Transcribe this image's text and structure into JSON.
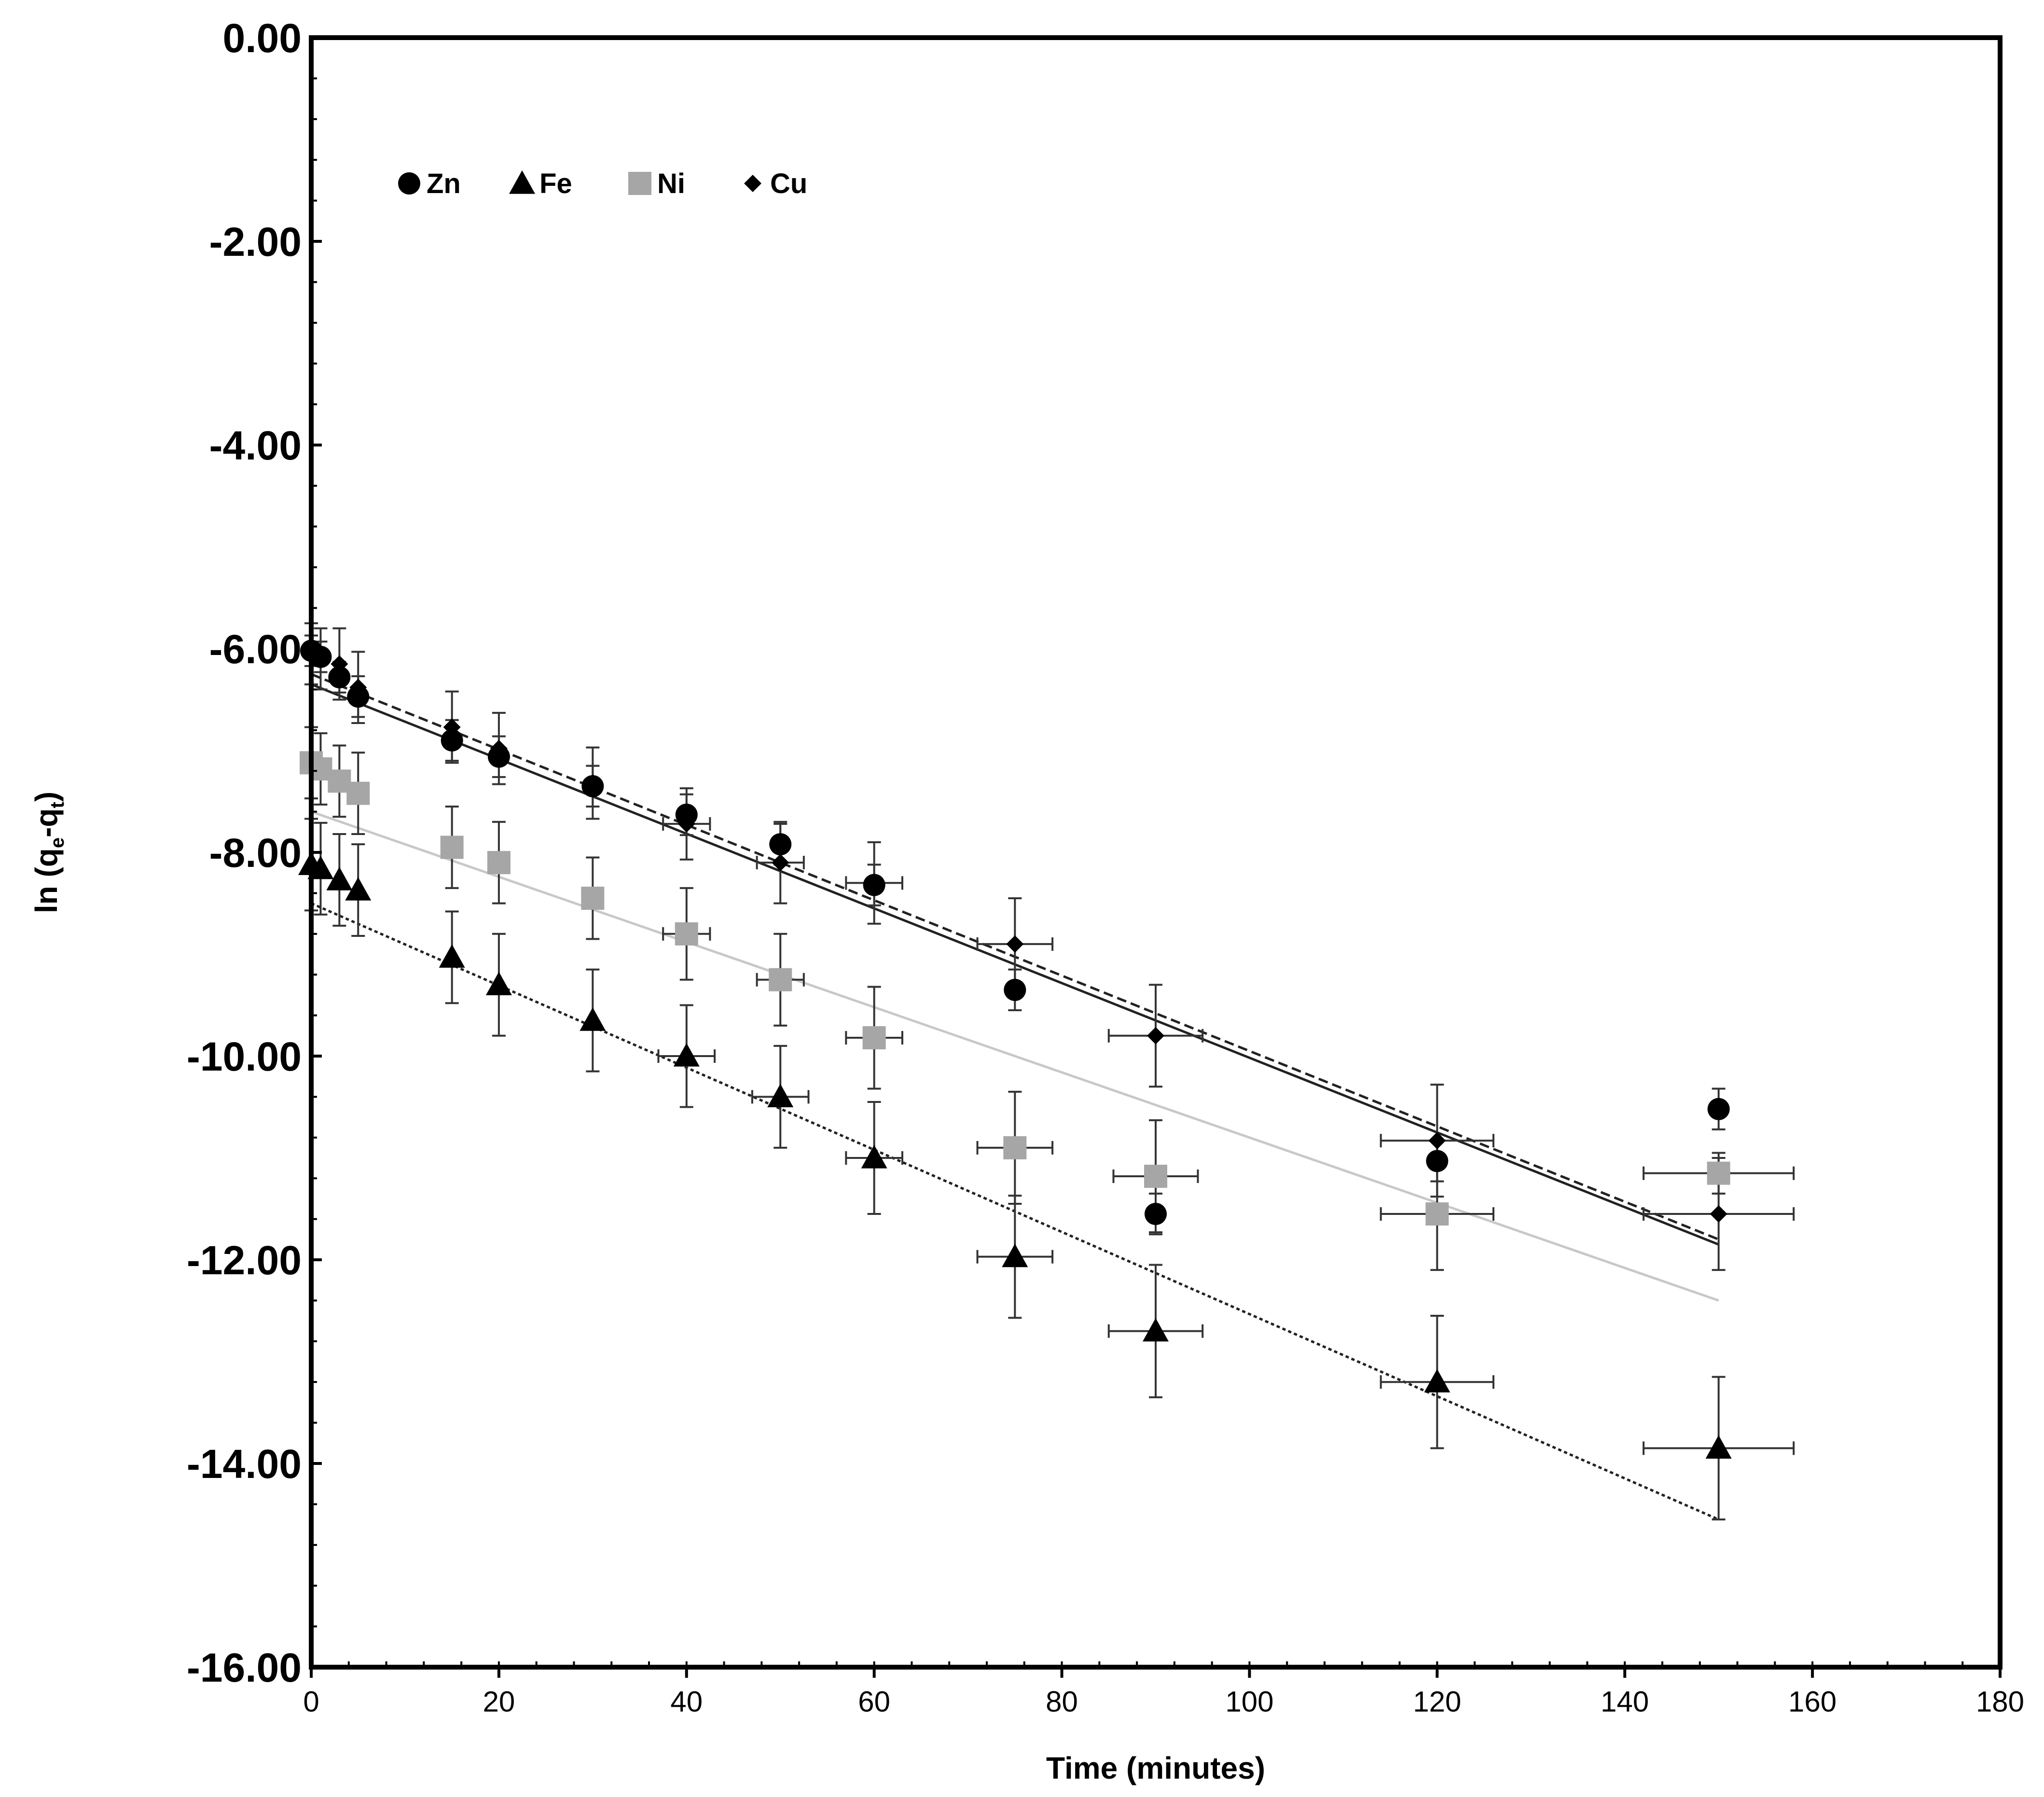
{
  "chart_data": {
    "type": "scatter",
    "title": "",
    "xlabel": "Time (minutes)",
    "ylabel_parts": [
      "ln (q",
      "e",
      "-q",
      "t",
      ")"
    ],
    "xlim": [
      0,
      180
    ],
    "ylim": [
      -16,
      0
    ],
    "x_ticks": [
      0,
      20,
      40,
      60,
      80,
      100,
      120,
      140,
      160,
      180
    ],
    "x_tick_labels": [
      "0",
      "20",
      "40",
      "60",
      "80",
      "100",
      "120",
      "140",
      "160",
      "180"
    ],
    "y_ticks": [
      0,
      -2,
      -4,
      -6,
      -8,
      -10,
      -12,
      -14,
      -16
    ],
    "y_tick_labels": [
      "0.00",
      "-2.00",
      "-4.00",
      "-6.00",
      "-8.00",
      "-10.00",
      "-12.00",
      "-14.00",
      "-16.00"
    ],
    "legend_position": "top-left",
    "x": [
      0,
      1,
      3,
      5,
      15,
      20,
      30,
      40,
      50,
      60,
      75,
      90,
      120,
      150
    ],
    "series": [
      {
        "name": "Zn",
        "marker": "circle",
        "color": "#000000",
        "values": [
          -6.02,
          -6.08,
          -6.28,
          -6.47,
          -6.9,
          -7.06,
          -7.35,
          -7.63,
          -7.92,
          -8.32,
          -9.35,
          -11.55,
          -11.03,
          -10.52
        ],
        "yerr": [
          0.15,
          0.15,
          0.15,
          0.2,
          0.2,
          0.2,
          0.2,
          0.2,
          0.2,
          0.2,
          0.2,
          0.2,
          0.2,
          0.2
        ],
        "xerr": [
          0,
          0,
          0,
          0,
          0,
          0,
          0,
          0,
          0,
          0,
          0,
          0,
          0,
          0
        ],
        "fit": {
          "start": [
            0,
            -6.35
          ],
          "end": [
            150,
            -11.85
          ],
          "style": "solid",
          "color": "#222222"
        }
      },
      {
        "name": "Fe",
        "marker": "triangle",
        "color": "#000000",
        "values": [
          -8.12,
          -8.16,
          -8.27,
          -8.37,
          -9.03,
          -9.3,
          -9.65,
          -10.0,
          -10.4,
          -11.0,
          -11.97,
          -12.7,
          -13.2,
          -13.85
        ],
        "yerr": [
          0.45,
          0.45,
          0.45,
          0.45,
          0.45,
          0.5,
          0.5,
          0.5,
          0.5,
          0.55,
          0.6,
          0.65,
          0.65,
          0.7
        ],
        "xerr": [
          0,
          0,
          0,
          0,
          0,
          0,
          0,
          3,
          3,
          3,
          4,
          5,
          6,
          8
        ],
        "fit": {
          "start": [
            0,
            -8.5
          ],
          "end": [
            150,
            -14.55
          ],
          "style": "dotted",
          "color": "#222222"
        }
      },
      {
        "name": "Ni",
        "marker": "square",
        "color": "#a6a6a6",
        "values": [
          -7.12,
          -7.18,
          -7.3,
          -7.42,
          -7.95,
          -8.1,
          -8.45,
          -8.8,
          -9.25,
          -9.82,
          -10.9,
          -11.18,
          -11.55,
          -11.15
        ],
        "yerr": [
          0.35,
          0.35,
          0.35,
          0.4,
          0.4,
          0.4,
          0.4,
          0.45,
          0.45,
          0.5,
          0.55,
          0.55,
          0.55,
          0.2
        ],
        "xerr": [
          0,
          0,
          0,
          0,
          0,
          0,
          0,
          2.5,
          2.5,
          3,
          4,
          4.5,
          6,
          8
        ],
        "fit": {
          "start": [
            0,
            -7.6
          ],
          "end": [
            150,
            -12.4
          ],
          "style": "solid",
          "color": "#c8c8c8"
        }
      },
      {
        "name": "Cu",
        "marker": "diamond",
        "color": "#000000",
        "values": [
          -6.05,
          -6.1,
          -6.15,
          -6.38,
          -6.77,
          -6.98,
          -7.32,
          -7.72,
          -8.1,
          -8.3,
          -8.9,
          -9.8,
          -10.83,
          -11.55
        ],
        "yerr": [
          0.3,
          0.3,
          0.35,
          0.35,
          0.35,
          0.35,
          0.35,
          0.35,
          0.4,
          0.4,
          0.45,
          0.5,
          0.55,
          0.55
        ],
        "xerr": [
          0,
          0,
          0,
          0,
          0,
          0,
          0,
          2.5,
          2.5,
          3,
          4,
          5,
          6,
          8
        ],
        "fit": {
          "start": [
            0,
            -6.25
          ],
          "end": [
            150,
            -11.8
          ],
          "style": "dashed",
          "color": "#222222"
        }
      }
    ]
  }
}
